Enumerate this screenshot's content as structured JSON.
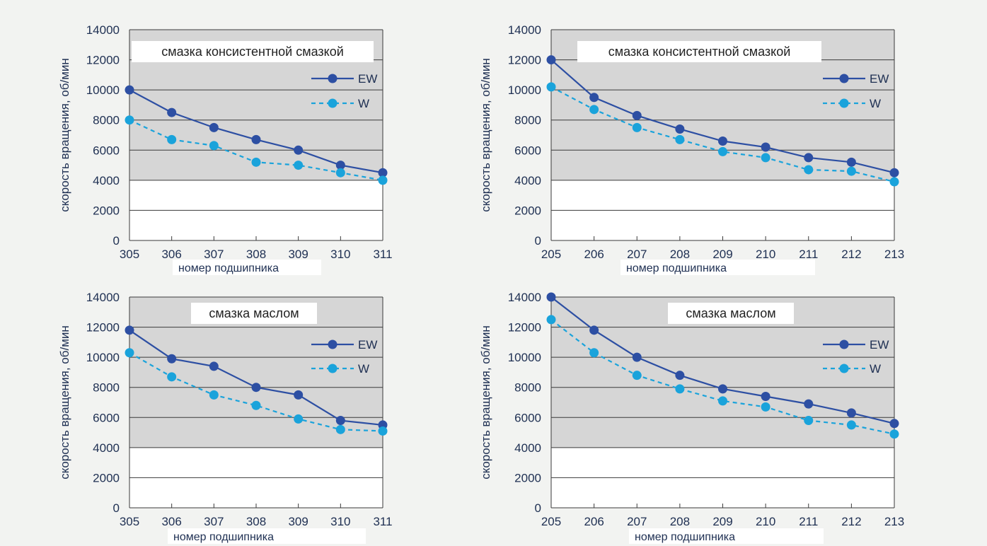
{
  "colors": {
    "page_bg": "#f2f3f1",
    "band_dark": "#d6d6d6",
    "band_light": "#ffffff",
    "gridline": "#3a3a3a",
    "axis_text": "#1e2f52",
    "ew": "#2d4fa3",
    "w": "#1aa3db"
  },
  "charts": [
    {
      "title": "смазка консистентной смазкой",
      "ylabel": "скорость вращения, об/мин",
      "xlabel": "номер подшипника",
      "legend": {
        "ew": "EW",
        "w": "W"
      },
      "yticks": [
        "0",
        "2000",
        "4000",
        "6000",
        "8000",
        "10000",
        "12000",
        "14000"
      ]
    },
    {
      "title": "смазка консистентной смазкой",
      "ylabel": "скорость вращения, об/мин",
      "xlabel": "номер подшипника",
      "legend": {
        "ew": "EW",
        "w": "W"
      },
      "yticks": [
        "0",
        "2000",
        "4000",
        "6000",
        "8000",
        "10000",
        "12000",
        "14000"
      ]
    },
    {
      "title": "смазка маслом",
      "ylabel": "скорость вращения, об/мин",
      "xlabel": "номер подшипника",
      "legend": {
        "ew": "EW",
        "w": "W"
      },
      "yticks": [
        "0",
        "2000",
        "4000",
        "6000",
        "8000",
        "10000",
        "12000",
        "14000"
      ]
    },
    {
      "title": "смазка маслом",
      "ylabel": "скорость вращения, об/мин",
      "xlabel": "номер подшипника",
      "legend": {
        "ew": "EW",
        "w": "W"
      },
      "yticks": [
        "0",
        "2000",
        "4000",
        "6000",
        "8000",
        "10000",
        "12000",
        "14000"
      ]
    }
  ],
  "chart_data": [
    {
      "type": "line",
      "title": "смазка консистентной смазкой",
      "xlabel": "номер подшипника",
      "ylabel": "скорость вращения, об/мин",
      "categories": [
        "305",
        "306",
        "307",
        "308",
        "309",
        "310",
        "311"
      ],
      "ylim": [
        0,
        14000
      ],
      "series": [
        {
          "name": "EW",
          "style": "solid",
          "values": [
            10000,
            8500,
            7500,
            6700,
            6000,
            5000,
            4500
          ]
        },
        {
          "name": "W",
          "style": "dashed",
          "values": [
            8000,
            6700,
            6300,
            5200,
            5000,
            4500,
            4000
          ]
        }
      ],
      "legend": "right",
      "grid": true
    },
    {
      "type": "line",
      "title": "смазка консистентной смазкой",
      "xlabel": "номер подшипника",
      "ylabel": "скорость вращения, об/мин",
      "categories": [
        "205",
        "206",
        "207",
        "208",
        "209",
        "210",
        "211",
        "212",
        "213"
      ],
      "ylim": [
        0,
        14000
      ],
      "series": [
        {
          "name": "EW",
          "style": "solid",
          "values": [
            12000,
            9500,
            8300,
            7400,
            6600,
            6200,
            5500,
            5200,
            4500
          ]
        },
        {
          "name": "W",
          "style": "dashed",
          "values": [
            10200,
            8700,
            7500,
            6700,
            5900,
            5500,
            4700,
            4600,
            3900
          ]
        }
      ],
      "legend": "right",
      "grid": true
    },
    {
      "type": "line",
      "title": "смазка маслом",
      "xlabel": "номер подшипника",
      "ylabel": "скорость вращения, об/мин",
      "categories": [
        "305",
        "306",
        "307",
        "308",
        "309",
        "310",
        "311"
      ],
      "ylim": [
        0,
        14000
      ],
      "series": [
        {
          "name": "EW",
          "style": "solid",
          "values": [
            11800,
            9900,
            9400,
            8000,
            7500,
            5800,
            5500
          ]
        },
        {
          "name": "W",
          "style": "dashed",
          "values": [
            10300,
            8700,
            7500,
            6800,
            5900,
            5200,
            5100
          ]
        }
      ],
      "legend": "right",
      "grid": true
    },
    {
      "type": "line",
      "title": "смазка маслом",
      "xlabel": "номер подшипника",
      "ylabel": "скорость вращения, об/мин",
      "categories": [
        "205",
        "206",
        "207",
        "208",
        "209",
        "210",
        "211",
        "212",
        "213"
      ],
      "ylim": [
        0,
        14000
      ],
      "series": [
        {
          "name": "EW",
          "style": "solid",
          "values": [
            14000,
            11800,
            10000,
            8800,
            7900,
            7400,
            6900,
            6300,
            5600
          ]
        },
        {
          "name": "W",
          "style": "dashed",
          "values": [
            12500,
            10300,
            8800,
            7900,
            7100,
            6700,
            5800,
            5500,
            4900
          ]
        }
      ],
      "legend": "right",
      "grid": true
    }
  ]
}
